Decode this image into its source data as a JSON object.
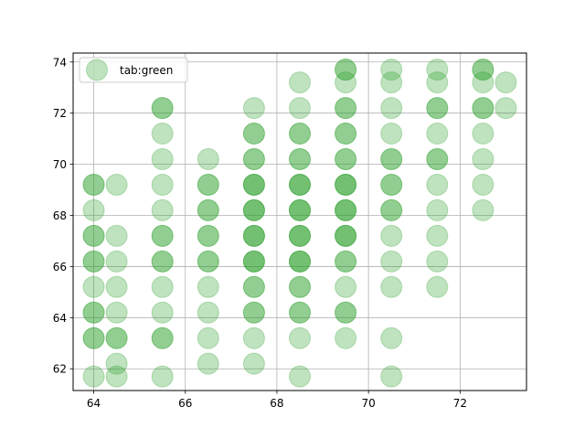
{
  "chart_data": {
    "type": "scatter",
    "title": "",
    "xlabel": "",
    "ylabel": "",
    "xlim": [
      63.55,
      73.45
    ],
    "ylim": [
      61.15,
      74.35
    ],
    "xticks": [
      64,
      66,
      68,
      70,
      72
    ],
    "yticks": [
      62,
      64,
      66,
      68,
      70,
      72,
      74
    ],
    "grid": true,
    "legend_position": "top-left",
    "series": [
      {
        "name": "tab:green",
        "color": "#2ca02c",
        "alpha": 0.3,
        "x": [
          64,
          64,
          64,
          64,
          64,
          64,
          64,
          64,
          64,
          64,
          64,
          64,
          64,
          64.5,
          64.5,
          64.5,
          64.5,
          64.5,
          64.5,
          64.5,
          64.5,
          64.5,
          65.5,
          65.5,
          65.5,
          65.5,
          65.5,
          65.5,
          65.5,
          65.5,
          65.5,
          65.5,
          65.5,
          65.5,
          65.5,
          65.5,
          65.5,
          66.5,
          66.5,
          66.5,
          66.5,
          66.5,
          66.5,
          66.5,
          66.5,
          66.5,
          66.5,
          66.5,
          66.5,
          66.5,
          67.5,
          67.5,
          67.5,
          67.5,
          67.5,
          67.5,
          67.5,
          67.5,
          67.5,
          67.5,
          67.5,
          67.5,
          67.5,
          67.5,
          67.5,
          67.5,
          67.5,
          67.5,
          67.5,
          67.5,
          67.5,
          67.5,
          67.5,
          68.5,
          68.5,
          68.5,
          68.5,
          68.5,
          68.5,
          68.5,
          68.5,
          68.5,
          68.5,
          68.5,
          68.5,
          68.5,
          68.5,
          68.5,
          68.5,
          68.5,
          68.5,
          68.5,
          68.5,
          68.5,
          68.5,
          68.5,
          68.5,
          69.5,
          69.5,
          69.5,
          69.5,
          69.5,
          69.5,
          69.5,
          69.5,
          69.5,
          69.5,
          69.5,
          69.5,
          69.5,
          69.5,
          69.5,
          69.5,
          69.5,
          69.5,
          69.5,
          69.5,
          69.5,
          69.5,
          69.5,
          69.5,
          70.5,
          70.5,
          70.5,
          70.5,
          70.5,
          70.5,
          70.5,
          70.5,
          70.5,
          70.5,
          70.5,
          70.5,
          70.5,
          70.5,
          70.5,
          71.5,
          71.5,
          71.5,
          71.5,
          71.5,
          71.5,
          71.5,
          71.5,
          71.5,
          71.5,
          71.5,
          71.5,
          72.5,
          72.5,
          72.5,
          72.5,
          72.5,
          72.5,
          72.5,
          72.5,
          72.5,
          73,
          73
        ],
        "y": [
          61.7,
          63.2,
          63.2,
          64.2,
          64.2,
          65.2,
          66.2,
          66.2,
          67.2,
          67.2,
          68.2,
          69.2,
          69.2,
          61.7,
          62.2,
          63.2,
          63.2,
          64.2,
          65.2,
          66.2,
          67.2,
          69.2,
          61.7,
          63.2,
          63.2,
          64.2,
          65.2,
          66.2,
          66.2,
          67.2,
          67.2,
          68.2,
          69.2,
          70.2,
          71.2,
          72.2,
          72.2,
          62.2,
          63.2,
          64.2,
          65.2,
          66.2,
          66.2,
          67.2,
          67.2,
          68.2,
          68.2,
          69.2,
          69.2,
          70.2,
          62.2,
          63.2,
          64.2,
          64.2,
          65.2,
          65.2,
          66.2,
          66.2,
          66.2,
          67.2,
          67.2,
          67.2,
          68.2,
          68.2,
          68.2,
          69.2,
          69.2,
          69.2,
          70.2,
          70.2,
          71.2,
          71.2,
          72.2,
          61.7,
          63.2,
          64.2,
          64.2,
          65.2,
          65.2,
          66.2,
          66.2,
          66.2,
          67.2,
          67.2,
          67.2,
          68.2,
          68.2,
          68.2,
          69.2,
          69.2,
          69.2,
          70.2,
          70.2,
          71.2,
          71.2,
          72.2,
          73.2,
          63.2,
          64.2,
          64.2,
          65.2,
          66.2,
          66.2,
          67.2,
          67.2,
          67.2,
          68.2,
          68.2,
          68.2,
          69.2,
          69.2,
          69.2,
          70.2,
          70.2,
          71.2,
          71.2,
          72.2,
          72.2,
          73.2,
          73.7,
          73.7,
          61.7,
          63.2,
          65.2,
          66.2,
          67.2,
          68.2,
          68.2,
          69.2,
          69.2,
          70.2,
          70.2,
          71.2,
          72.2,
          73.2,
          73.7,
          65.2,
          66.2,
          67.2,
          68.2,
          69.2,
          70.2,
          70.2,
          71.2,
          72.2,
          72.2,
          73.2,
          73.7,
          68.2,
          69.2,
          70.2,
          71.2,
          72.2,
          72.2,
          73.2,
          73.7,
          73.7,
          72.2,
          73.2
        ]
      }
    ]
  }
}
